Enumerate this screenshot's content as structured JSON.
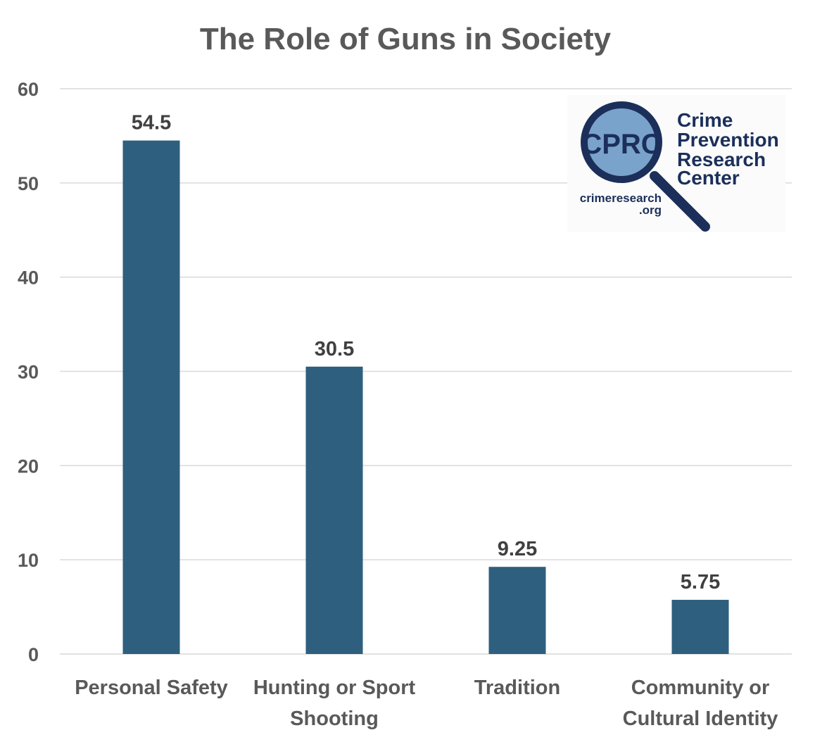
{
  "chart_data": {
    "type": "bar",
    "title": "The Role of Guns in Society",
    "categories": [
      [
        "Personal Safety"
      ],
      [
        "Hunting or Sport",
        "Shooting"
      ],
      [
        "Tradition"
      ],
      [
        "Community or",
        "Cultural Identity"
      ]
    ],
    "values": [
      54.5,
      30.5,
      9.25,
      5.75
    ],
    "data_labels": [
      "54.5",
      "30.5",
      "9.25",
      "5.75"
    ],
    "xlabel": "",
    "ylabel": "",
    "ylim": [
      0,
      60
    ],
    "yticks": [
      0,
      10,
      20,
      30,
      40,
      50,
      60
    ],
    "grid": true,
    "bar_color": "#2e5f7e",
    "grid_color": "#d9d9d9"
  },
  "logo": {
    "initials": "CPRC",
    "name_lines": [
      "Crime",
      "Prevention",
      "Research",
      "Center"
    ],
    "url_lines": [
      "crimeresearch",
      ".org"
    ]
  }
}
